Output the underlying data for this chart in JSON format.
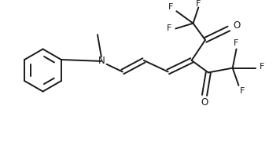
{
  "bg_color": "#ffffff",
  "line_color": "#1a1a1a",
  "text_color": "#1a1a1a",
  "figsize": [
    3.56,
    1.86
  ],
  "dpi": 100,
  "lw": 1.4,
  "font_size": 8.0,
  "xlim": [
    0,
    356
  ],
  "ylim": [
    0,
    186
  ]
}
